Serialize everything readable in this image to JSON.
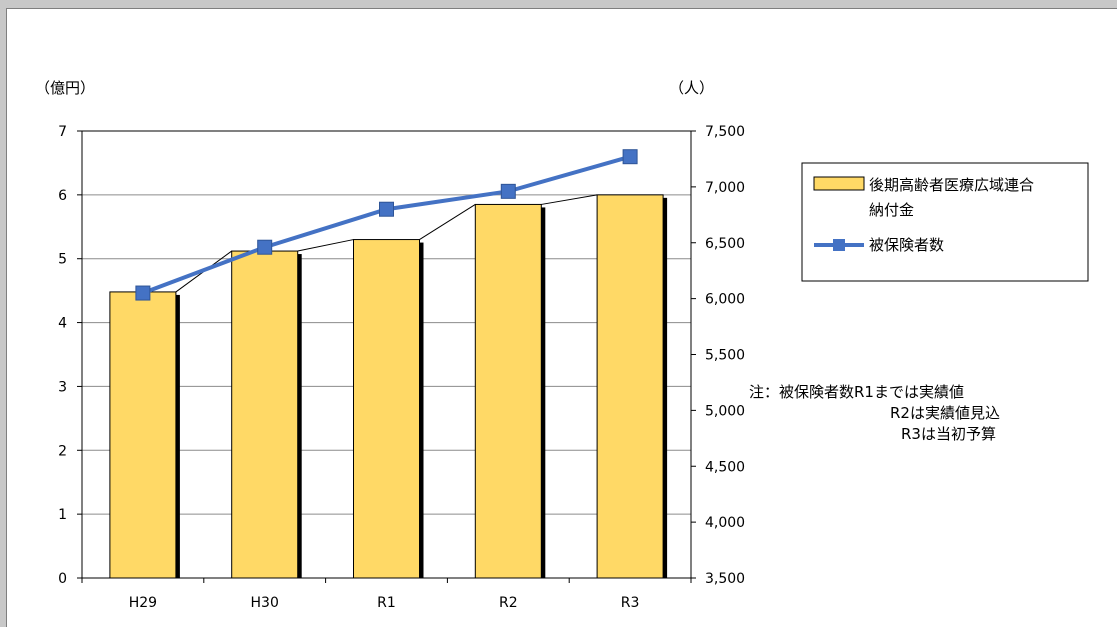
{
  "chart_data": {
    "type": "bar",
    "categories": [
      "H29",
      "H30",
      "R1",
      "R2",
      "R3"
    ],
    "series": [
      {
        "name": "後期高齢者医療広域連合納付金",
        "type": "bar",
        "axis": "left",
        "values": [
          4.48,
          5.12,
          5.3,
          5.85,
          6.0
        ],
        "color": "#ffd966"
      },
      {
        "name": "被保険者数",
        "type": "line",
        "axis": "right",
        "values": [
          6050,
          6460,
          6800,
          6960,
          7270
        ],
        "color": "#4472c4"
      }
    ],
    "y_left": {
      "label": "（億円）",
      "min": 0,
      "max": 7,
      "ticks": [
        "0",
        "1",
        "2",
        "3",
        "4",
        "5",
        "6",
        "7"
      ]
    },
    "y_right": {
      "label": "（人）",
      "min": 3500,
      "max": 7500,
      "ticks": [
        "3,500",
        "4,000",
        "4,500",
        "5,000",
        "5,500",
        "6,000",
        "6,500",
        "7,000",
        "7,500"
      ]
    },
    "legend": {
      "bar_label_line1": "後期高齢者医療広域連合",
      "bar_label_line2": "納付金",
      "line_label": "被保険者数",
      "position": "right"
    },
    "notes": [
      "注：被保険者数R1までは実績値",
      "R2は実績値見込",
      "R3は当初予算"
    ],
    "grid": true
  }
}
